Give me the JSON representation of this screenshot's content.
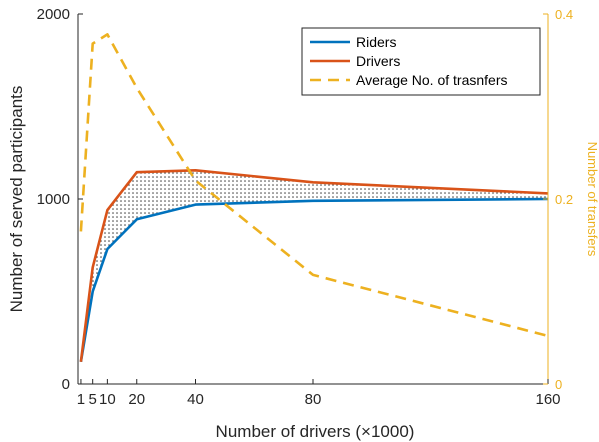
{
  "chart_data": {
    "type": "line",
    "xlabel": "Number of drivers (×1000)",
    "ylabel": "Number of served participants",
    "y2label": "Number of transfers",
    "xlim": [
      0,
      160
    ],
    "ylim": [
      0,
      2000
    ],
    "y2lim": [
      0,
      0.4
    ],
    "xticks": [
      1,
      5,
      10,
      20,
      40,
      80,
      160
    ],
    "yticks": [
      0,
      1000,
      2000
    ],
    "y2ticks": [
      0,
      0.2,
      0.4
    ],
    "grid": false,
    "legend_position": "top-right",
    "shaded_region": "between Riders and Drivers (dotted)",
    "series": [
      {
        "name": "Riders",
        "axis": "left",
        "style": "solid",
        "color": "#0072BD",
        "x": [
          1,
          5,
          10,
          20,
          40,
          80,
          160
        ],
        "y": [
          120,
          500,
          730,
          890,
          970,
          990,
          1000
        ]
      },
      {
        "name": "Drivers",
        "axis": "left",
        "style": "solid",
        "color": "#D95319",
        "x": [
          1,
          5,
          10,
          20,
          40,
          80,
          160
        ],
        "y": [
          120,
          630,
          940,
          1145,
          1155,
          1090,
          1030
        ]
      },
      {
        "name": "Average No. of trasnfers",
        "axis": "right",
        "style": "dashed",
        "color": "#EDB120",
        "x": [
          1,
          5,
          10,
          20,
          40,
          80,
          160
        ],
        "y": [
          0.165,
          0.368,
          0.378,
          0.32,
          0.22,
          0.118,
          0.052
        ]
      }
    ]
  }
}
